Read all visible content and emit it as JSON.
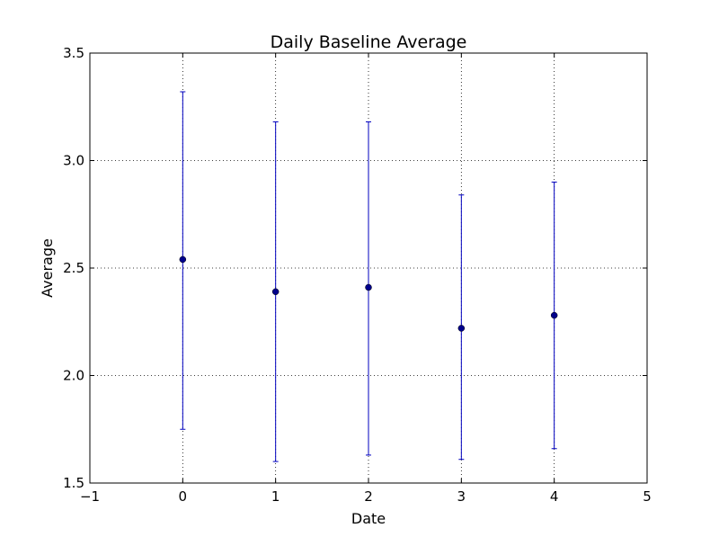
{
  "chart_data": {
    "type": "scatter",
    "title": "Daily Baseline Average",
    "xlabel": "Date",
    "ylabel": "Average",
    "xlim": [
      -1,
      5
    ],
    "ylim": [
      1.5,
      3.5
    ],
    "x_ticks": [
      "−1",
      "0",
      "1",
      "2",
      "3",
      "4",
      "5"
    ],
    "y_ticks": [
      "1.5",
      "2.0",
      "2.5",
      "3.0",
      "3.5"
    ],
    "grid": true,
    "error_bars": true,
    "series": [
      {
        "x": [
          0,
          1,
          2,
          3,
          4
        ],
        "y": [
          2.54,
          2.39,
          2.41,
          2.22,
          2.28
        ],
        "err_low": [
          1.75,
          1.6,
          1.63,
          1.61,
          1.66
        ],
        "err_high": [
          3.32,
          3.18,
          3.18,
          2.84,
          2.9
        ],
        "color": "#0000bf",
        "marker_color": "#00008b"
      }
    ]
  }
}
